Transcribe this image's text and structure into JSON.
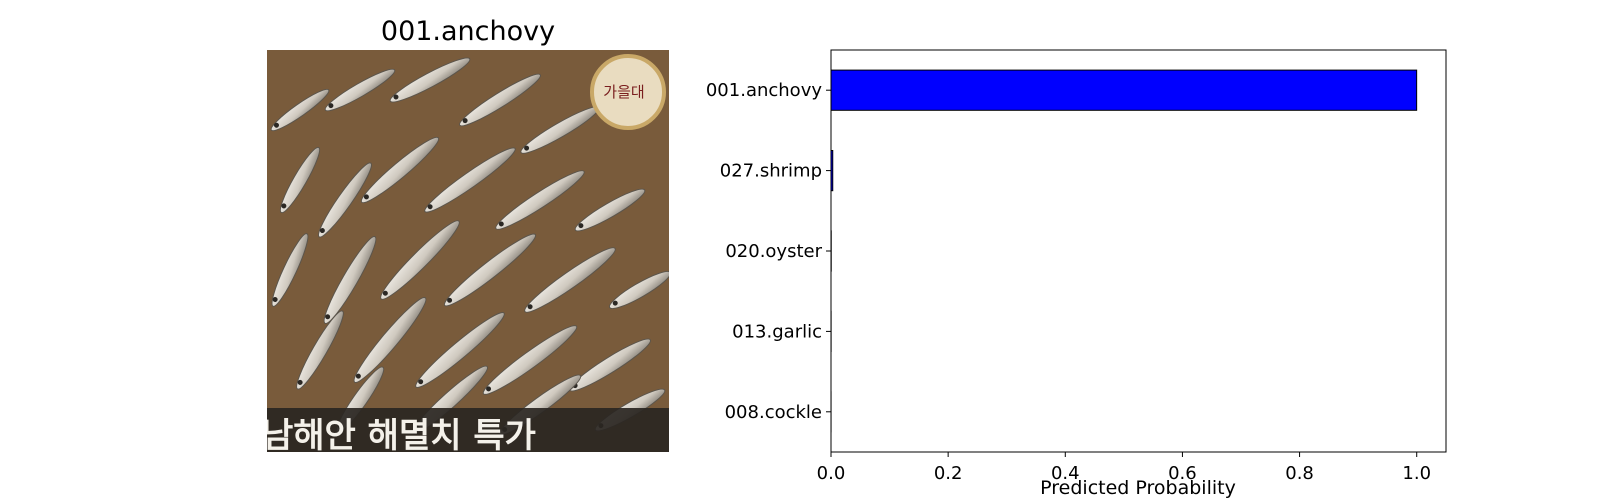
{
  "image_panel": {
    "title": "001.anchovy",
    "photo_caption": "남해안 해멸치 특가",
    "logo_text": "가을대",
    "colors": {
      "background": "#8a6a45",
      "fish_light": "#e4e0d8",
      "fish_dark": "#6f6a62",
      "caption_band": "#2a2622"
    }
  },
  "chart_data": {
    "type": "bar",
    "orientation": "horizontal",
    "categories": [
      "001.anchovy",
      "027.shrimp",
      "020.oyster",
      "013.garlic",
      "008.cockle"
    ],
    "values": [
      0.9999,
      0.003,
      0.0004,
      0.0002,
      0.0001
    ],
    "xlabel": "Predicted Probability",
    "ylabel": "",
    "xlim": [
      0,
      1.05
    ],
    "xticks": [
      0.0,
      0.2,
      0.4,
      0.6,
      0.8,
      1.0
    ],
    "xtick_labels": [
      "0.0",
      "0.2",
      "0.4",
      "0.6",
      "0.8",
      "1.0"
    ],
    "grid": false,
    "bar_color": "#0000ff",
    "edge_color": "#000000"
  }
}
